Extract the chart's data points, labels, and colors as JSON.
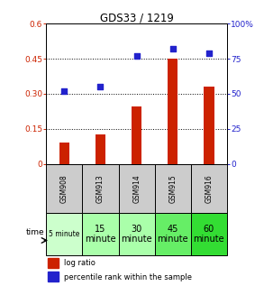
{
  "title": "GDS33 / 1219",
  "samples": [
    "GSM908",
    "GSM913",
    "GSM914",
    "GSM915",
    "GSM916"
  ],
  "log_ratio": [
    0.09,
    0.125,
    0.245,
    0.45,
    0.33
  ],
  "percentile_rank": [
    52,
    55,
    77,
    82,
    79
  ],
  "bar_color": "#cc2200",
  "scatter_color": "#2222cc",
  "left_ylim": [
    0,
    0.6
  ],
  "right_ylim": [
    0,
    100
  ],
  "left_yticks": [
    0,
    0.15,
    0.3,
    0.45,
    0.6
  ],
  "right_yticks": [
    0,
    25,
    50,
    75,
    100
  ],
  "left_yticklabels": [
    "0",
    "0.15",
    "0.30",
    "0.45",
    "0.6"
  ],
  "right_yticklabels": [
    "0",
    "25",
    "50",
    "75",
    "100%"
  ],
  "hlines": [
    0.15,
    0.3,
    0.45
  ],
  "sample_row_color": "#cccccc",
  "time_colors": [
    "#ccffcc",
    "#aaffaa",
    "#aaffaa",
    "#66ee66",
    "#33dd33"
  ],
  "time_labels": [
    "5 minute",
    "15\nminute",
    "30\nminute",
    "45\nminute",
    "60\nminute"
  ],
  "time_fontsizes": [
    5.5,
    7,
    7,
    7,
    7
  ]
}
